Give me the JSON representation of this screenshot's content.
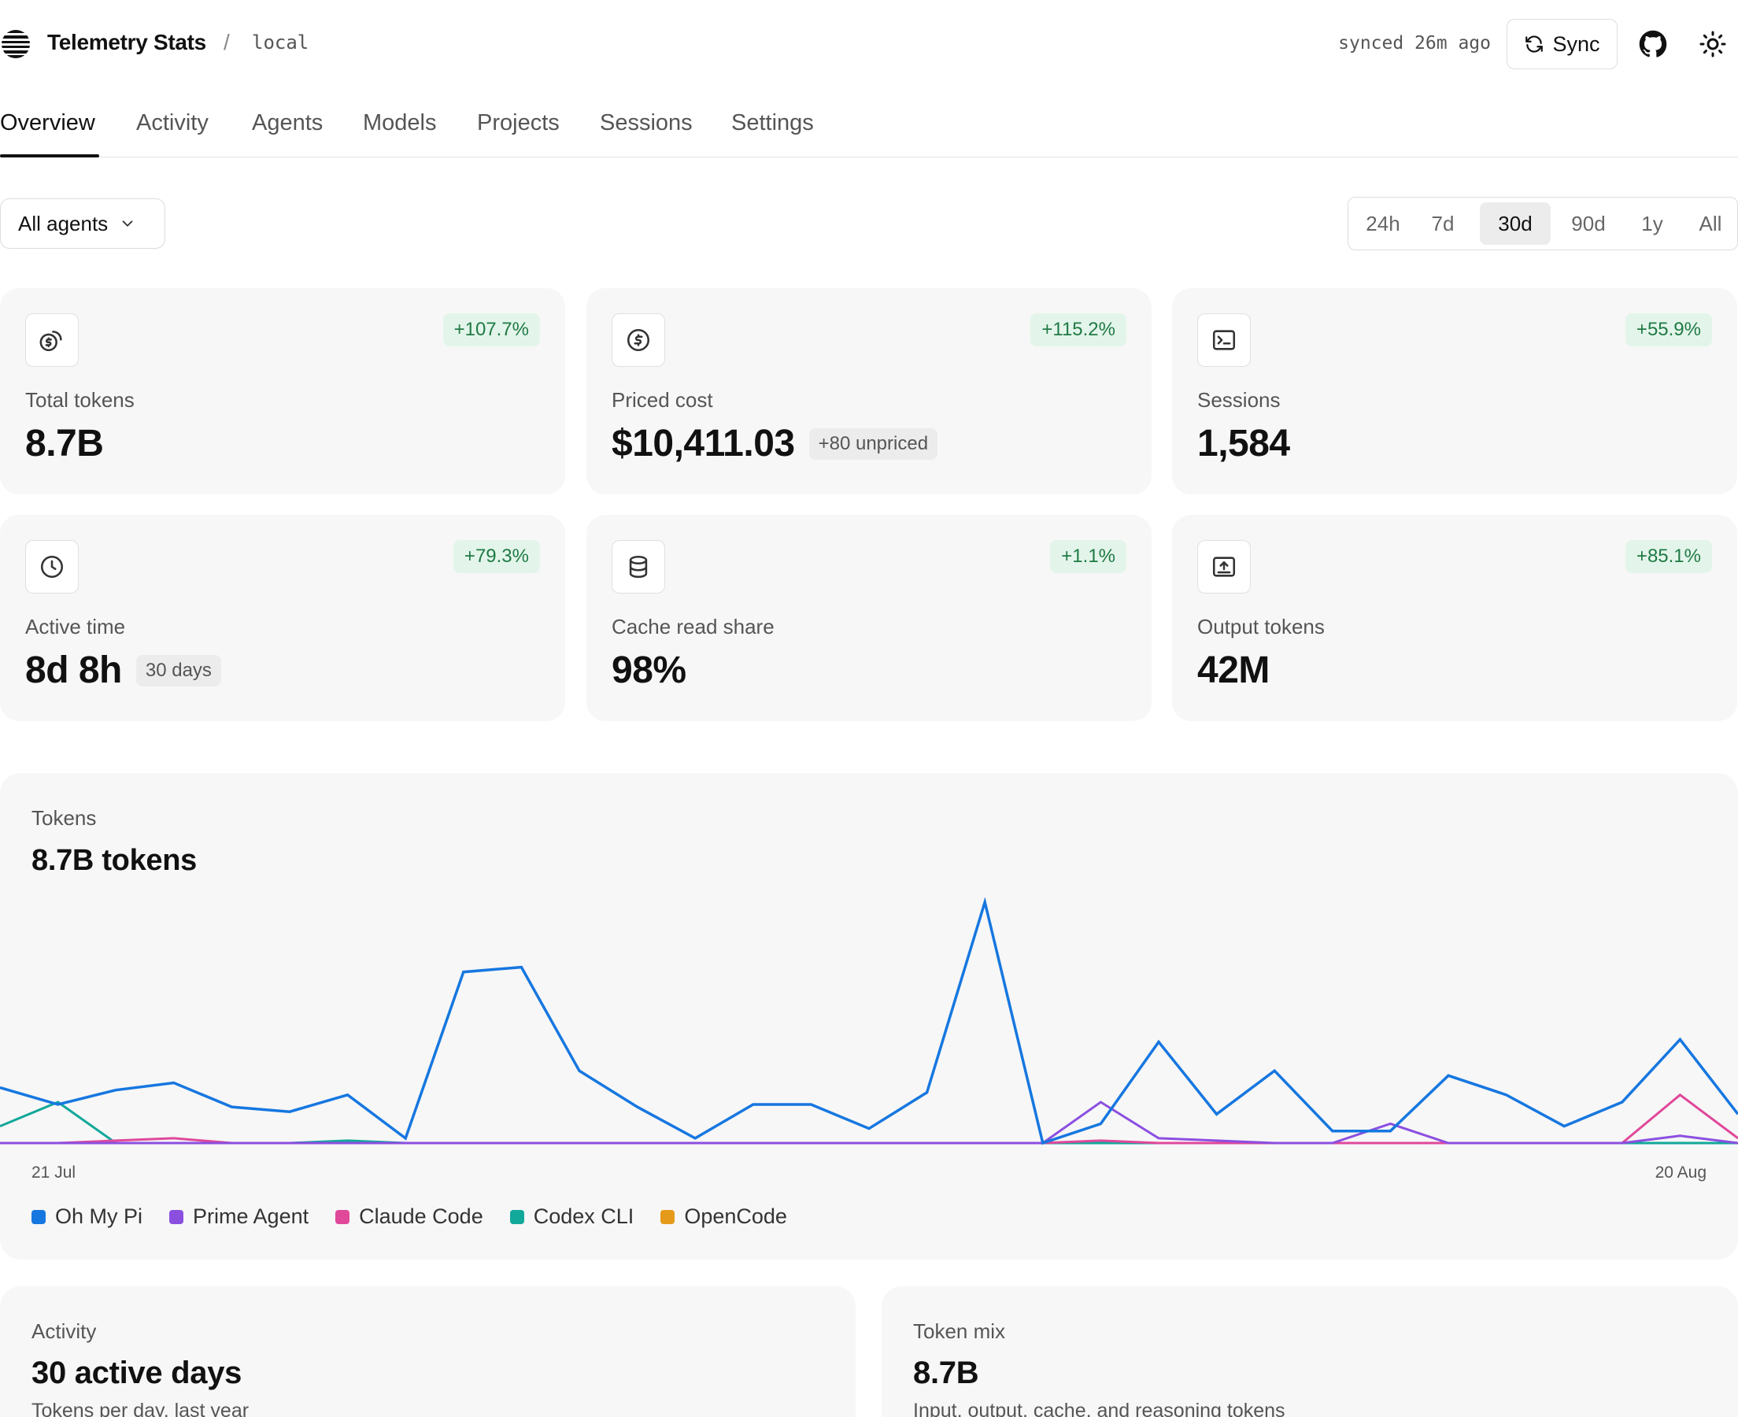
{
  "header": {
    "app_title": "Telemetry Stats",
    "separator": "/",
    "environment": "local",
    "sync_status": "synced 26m ago",
    "sync_label": "Sync",
    "icons": [
      "logo-icon",
      "refresh-icon",
      "github-icon",
      "sun-icon"
    ]
  },
  "tabs": [
    {
      "label": "Overview",
      "active": true
    },
    {
      "label": "Activity"
    },
    {
      "label": "Agents"
    },
    {
      "label": "Models"
    },
    {
      "label": "Projects"
    },
    {
      "label": "Sessions"
    },
    {
      "label": "Settings"
    }
  ],
  "filters": {
    "agent_select": "All agents",
    "ranges": [
      "24h",
      "7d",
      "30d",
      "90d",
      "1y",
      "All"
    ],
    "selected_range": "30d"
  },
  "stats": [
    {
      "icon": "coins-icon",
      "label": "Total tokens",
      "value": "8.7B",
      "change": "+107.7%"
    },
    {
      "icon": "dollar-icon",
      "label": "Priced cost",
      "value": "$10,411.03",
      "note": "+80 unpriced",
      "change": "+115.2%"
    },
    {
      "icon": "terminal-icon",
      "label": "Sessions",
      "value": "1,584",
      "change": "+55.9%"
    },
    {
      "icon": "clock-icon",
      "label": "Active time",
      "value": "8d 8h",
      "note": "30 days",
      "change": "+79.3%"
    },
    {
      "icon": "database-icon",
      "label": "Cache read share",
      "value": "98%",
      "change": "+1.1%"
    },
    {
      "icon": "output-icon",
      "label": "Output tokens",
      "value": "42M",
      "change": "+85.1%"
    }
  ],
  "chart_data": {
    "type": "line",
    "label": "Tokens",
    "title": "8.7B tokens",
    "x_start": "21 Jul",
    "x_end": "20 Aug",
    "x_tick_labels": [
      "21 Jul",
      "20 Aug"
    ],
    "x": [
      "21 Jul",
      "22 Jul",
      "23 Jul",
      "24 Jul",
      "25 Jul",
      "26 Jul",
      "27 Jul",
      "28 Jul",
      "29 Jul",
      "30 Jul",
      "31 Jul",
      "1 Aug",
      "2 Aug",
      "3 Aug",
      "4 Aug",
      "5 Aug",
      "6 Aug",
      "7 Aug",
      "8 Aug",
      "9 Aug",
      "10 Aug",
      "11 Aug",
      "12 Aug",
      "13 Aug",
      "14 Aug",
      "15 Aug",
      "16 Aug",
      "17 Aug",
      "18 Aug",
      "19 Aug",
      "20 Aug"
    ],
    "ylim": [
      0,
      1
    ],
    "grid": false,
    "legend_position": "bottom-left",
    "series": [
      {
        "name": "Oh My Pi",
        "color": "#1677e0",
        "values": [
          0.23,
          0.16,
          0.22,
          0.25,
          0.15,
          0.13,
          0.2,
          0.02,
          0.71,
          0.73,
          0.3,
          0.15,
          0.02,
          0.16,
          0.16,
          0.06,
          0.21,
          1.0,
          0.0,
          0.08,
          0.42,
          0.12,
          0.3,
          0.05,
          0.05,
          0.28,
          0.2,
          0.07,
          0.17,
          0.43,
          0.12
        ]
      },
      {
        "name": "Prime Agent",
        "color": "#8b4fe0",
        "values": [
          0,
          0,
          0,
          0,
          0,
          0,
          0,
          0,
          0,
          0,
          0,
          0,
          0,
          0,
          0,
          0,
          0,
          0,
          0,
          0.17,
          0.02,
          0.01,
          0,
          0,
          0.08,
          0,
          0,
          0,
          0,
          0.03,
          0
        ]
      },
      {
        "name": "Claude Code",
        "color": "#e0489a",
        "values": [
          0,
          0,
          0.01,
          0.02,
          0,
          0,
          0,
          0,
          0,
          0,
          0,
          0,
          0,
          0,
          0,
          0,
          0,
          0,
          0,
          0.01,
          0,
          0,
          0,
          0,
          0,
          0,
          0,
          0,
          0,
          0.2,
          0.02
        ]
      },
      {
        "name": "Codex CLI",
        "color": "#12a89a",
        "values": [
          0.07,
          0.17,
          0,
          0,
          0,
          0,
          0.01,
          0,
          0,
          0,
          0,
          0,
          0,
          0,
          0,
          0,
          0,
          0,
          0,
          0,
          0,
          0,
          0,
          0,
          0,
          0,
          0,
          0,
          0,
          0,
          0
        ]
      },
      {
        "name": "OpenCode",
        "color": "#e69a1a",
        "values": [
          0,
          0,
          0,
          0,
          0,
          0,
          0,
          0,
          0,
          0,
          0,
          0,
          0,
          0,
          0,
          0,
          0,
          0,
          0,
          0,
          0,
          0,
          0,
          0,
          0,
          0,
          0,
          0,
          0,
          0,
          0
        ]
      }
    ]
  },
  "activity": {
    "label": "Activity",
    "title": "30 active days",
    "subtitle": "Tokens per day, last year"
  },
  "token_mix": {
    "label": "Token mix",
    "title": "8.7B",
    "subtitle": "Input, output, cache, and reasoning tokens"
  }
}
